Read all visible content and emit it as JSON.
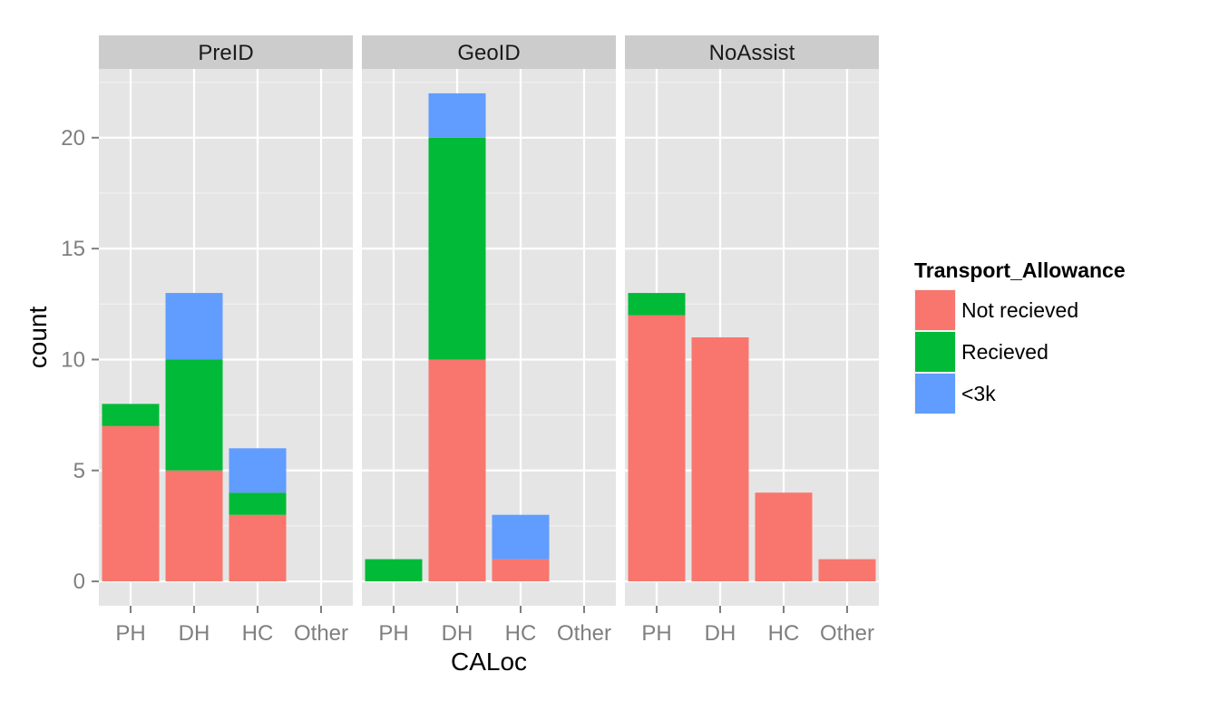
{
  "chart_data": {
    "type": "bar",
    "stacked": true,
    "xlabel": "CALoc",
    "ylabel": "count",
    "ylim": [
      -1.1,
      23.1
    ],
    "y_ticks": [
      0,
      5,
      10,
      15,
      20
    ],
    "categories": [
      "PH",
      "DH",
      "HC",
      "Other"
    ],
    "legend": {
      "title": "Transport_Allowance",
      "position": "right",
      "entries": [
        {
          "name": "Not recieved",
          "color": "#F8766D"
        },
        {
          "name": "Recieved",
          "color": "#00BA38"
        },
        {
          "name": "<3k",
          "color": "#619CFF"
        }
      ]
    },
    "panels": [
      {
        "strip": "PreID",
        "series": [
          {
            "name": "Not recieved",
            "values": [
              7,
              5,
              3,
              0
            ]
          },
          {
            "name": "Recieved",
            "values": [
              1,
              5,
              1,
              0
            ]
          },
          {
            "name": "<3k",
            "values": [
              0,
              3,
              2,
              0
            ]
          }
        ]
      },
      {
        "strip": "GeoID",
        "series": [
          {
            "name": "Not recieved",
            "values": [
              0,
              10,
              1,
              0
            ]
          },
          {
            "name": "Recieved",
            "values": [
              1,
              10,
              0,
              0
            ]
          },
          {
            "name": "<3k",
            "values": [
              0,
              2,
              2,
              0
            ]
          }
        ]
      },
      {
        "strip": "NoAssist",
        "series": [
          {
            "name": "Not recieved",
            "values": [
              12,
              11,
              4,
              1
            ]
          },
          {
            "name": "Recieved",
            "values": [
              1,
              0,
              0,
              0
            ]
          },
          {
            "name": "<3k",
            "values": [
              0,
              0,
              0,
              0
            ]
          }
        ]
      }
    ],
    "grid": true,
    "theme": {
      "panel_background": "#E5E5E5",
      "strip_background": "#CCCCCC",
      "grid_major": "#FFFFFF",
      "grid_minor": "#F2F2F2"
    }
  }
}
